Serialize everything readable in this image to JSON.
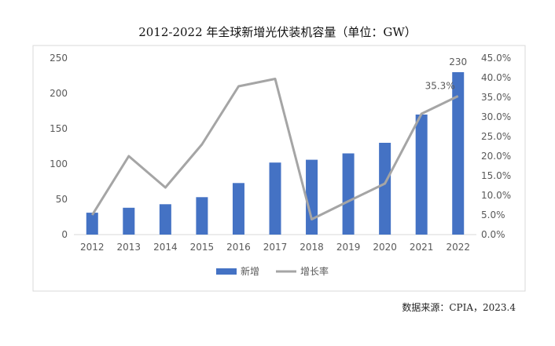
{
  "chart_data": {
    "type": "bar",
    "title": "2012-2022 年全球新增光伏装机容量（单位：GW）",
    "categories": [
      "2012",
      "2013",
      "2014",
      "2015",
      "2016",
      "2017",
      "2018",
      "2019",
      "2020",
      "2021",
      "2022"
    ],
    "series": [
      {
        "name": "新增",
        "type": "bar",
        "axis": "left",
        "color": "#4472C4",
        "values": [
          31,
          38,
          43,
          53,
          73,
          102,
          106,
          115,
          130,
          170,
          230
        ]
      },
      {
        "name": "增长率",
        "type": "line",
        "axis": "right",
        "color": "#A5A5A5",
        "values": [
          5.0,
          20.0,
          12.0,
          23.0,
          37.8,
          39.7,
          3.9,
          8.5,
          13.0,
          30.8,
          35.3
        ]
      }
    ],
    "y_left": {
      "min": 0,
      "max": 250,
      "ticks": [
        "0",
        "50",
        "100",
        "150",
        "200",
        "250"
      ]
    },
    "y_right": {
      "min": 0,
      "max": 45,
      "ticks": [
        "0.0%",
        "5.0%",
        "10.0%",
        "15.0%",
        "20.0%",
        "25.0%",
        "30.0%",
        "35.0%",
        "40.0%",
        "45.0%"
      ]
    },
    "annotations": [
      {
        "series": 0,
        "index": 10,
        "text": "230"
      },
      {
        "series": 1,
        "index": 10,
        "text": "35.3%"
      }
    ],
    "legend_position": "bottom",
    "grid": false
  },
  "source": "数据来源：CPIA，2023.4"
}
